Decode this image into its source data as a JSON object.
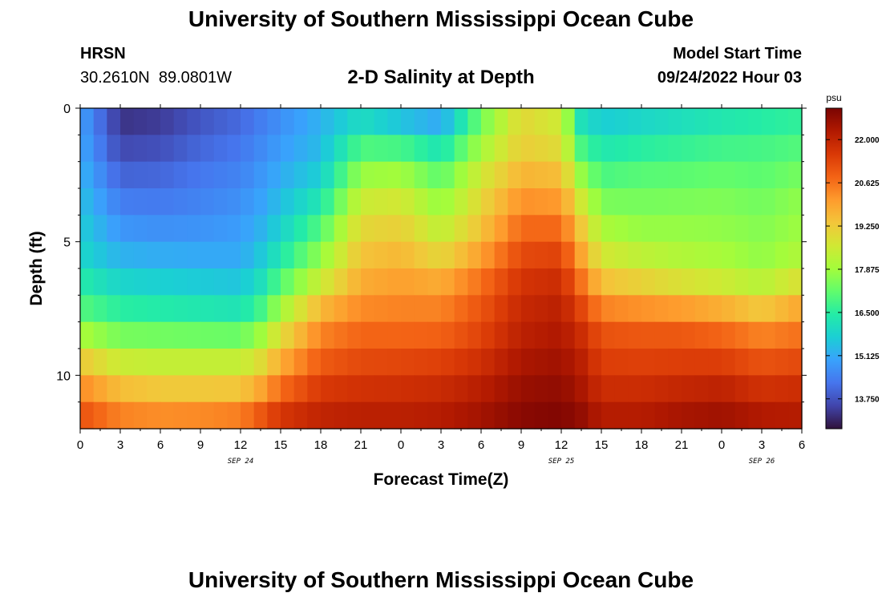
{
  "header": {
    "title": "University of Southern Mississippi Ocean Cube",
    "station": "HRSN",
    "coordinates": "30.2610N  89.0801W",
    "subtitle": "2-D Salinity at Depth",
    "model_start_label": "Model Start Time",
    "model_start_value": "09/24/2022 Hour 03"
  },
  "footer": {
    "title": "University of Southern Mississippi Ocean Cube"
  },
  "chart_data": {
    "type": "heatmap",
    "title": "2-D Salinity at Depth",
    "xlabel": "Forecast Time(Z)",
    "ylabel": "Depth (ft)",
    "x_range_hours": [
      0,
      54
    ],
    "y_range_ft": [
      0,
      12
    ],
    "y_inverted": true,
    "x_tick_hours": [
      0,
      3,
      6,
      9,
      12,
      15,
      18,
      21,
      24,
      27,
      30,
      33,
      36,
      39,
      42,
      45,
      48,
      51,
      54
    ],
    "x_tick_labels": [
      "0",
      "3",
      "6",
      "9",
      "12",
      "15",
      "18",
      "21",
      "0",
      "3",
      "6",
      "9",
      "12",
      "15",
      "18",
      "21",
      "0",
      "3",
      "6"
    ],
    "date_labels": [
      {
        "hour": 12,
        "text": "SEP 24"
      },
      {
        "hour": 36,
        "text": "SEP 25"
      },
      {
        "hour": 51,
        "text": "SEP 26"
      }
    ],
    "y_ticks": [
      0,
      5,
      10
    ],
    "y_tick_labels": [
      "0",
      "5",
      "10"
    ],
    "colorbar": {
      "unit": "psu",
      "min": 12.8,
      "max": 23.0,
      "ticks": [
        13.75,
        15.125,
        16.5,
        17.875,
        19.25,
        20.625,
        22.0
      ],
      "tick_labels": [
        "13.750",
        "15.125",
        "16.500",
        "17.875",
        "19.250",
        "20.625",
        "22.000"
      ],
      "colors": [
        "#30123b",
        "#4145ab",
        "#4675ed",
        "#39a2fc",
        "#1bcfd4",
        "#24eca6",
        "#61fc6c",
        "#a4fc3b",
        "#d1e834",
        "#f3c63a",
        "#fe9b2d",
        "#f36315",
        "#d93806",
        "#b11901",
        "#7a0402"
      ]
    },
    "depth_levels_ft": [
      0,
      1,
      2,
      3,
      4,
      5,
      6,
      7,
      8,
      9,
      10,
      11,
      12
    ],
    "time_profile_hours": [
      0,
      3,
      6,
      9,
      12,
      13.5,
      15,
      18,
      21,
      24,
      27,
      30,
      33,
      36,
      37.5,
      39,
      42,
      45,
      48,
      51,
      54
    ],
    "salinity_psu": [
      [
        15.0,
        13.2,
        13.3,
        13.7,
        14.0,
        14.3,
        14.6,
        15.2,
        15.6,
        14.8,
        14.6,
        17.2,
        19.0,
        18.5,
        15.8,
        15.4,
        15.6,
        15.8,
        16.0,
        16.2,
        16.4
      ],
      [
        15.0,
        13.4,
        13.5,
        13.9,
        14.2,
        14.5,
        14.8,
        15.3,
        16.5,
        16.3,
        15.6,
        17.5,
        19.0,
        18.6,
        16.5,
        16.0,
        16.2,
        16.4,
        16.6,
        16.7,
        16.8
      ],
      [
        15.2,
        13.8,
        13.9,
        14.2,
        14.4,
        14.7,
        15.0,
        15.5,
        17.4,
        17.4,
        16.8,
        18.4,
        19.4,
        19.2,
        17.3,
        16.6,
        16.8,
        16.9,
        17.0,
        17.0,
        17.2
      ],
      [
        15.4,
        14.2,
        14.2,
        14.4,
        14.6,
        14.9,
        15.3,
        16.0,
        18.2,
        18.4,
        17.4,
        18.8,
        19.9,
        19.8,
        18.2,
        17.2,
        17.3,
        17.3,
        17.4,
        17.2,
        17.6
      ],
      [
        15.6,
        14.6,
        14.5,
        14.6,
        14.8,
        15.1,
        15.6,
        16.6,
        18.8,
        18.9,
        18.0,
        19.2,
        20.5,
        20.4,
        19.0,
        17.7,
        17.5,
        17.6,
        17.6,
        17.5,
        17.8
      ],
      [
        15.8,
        15.0,
        14.9,
        14.9,
        15.0,
        15.4,
        16.0,
        17.4,
        19.2,
        19.4,
        18.6,
        19.6,
        21.0,
        21.1,
        19.6,
        18.3,
        18.0,
        17.9,
        17.8,
        17.6,
        17.9
      ],
      [
        16.0,
        15.5,
        15.4,
        15.3,
        15.2,
        15.8,
        16.6,
        18.0,
        19.6,
        19.8,
        19.4,
        20.4,
        21.5,
        21.6,
        20.2,
        19.0,
        18.6,
        18.3,
        18.1,
        17.8,
        18.3
      ],
      [
        16.8,
        16.2,
        16.1,
        16.0,
        15.9,
        16.4,
        17.4,
        19.0,
        20.0,
        20.2,
        20.2,
        20.9,
        21.8,
        22.0,
        21.0,
        19.9,
        19.6,
        19.3,
        19.0,
        18.6,
        19.4
      ],
      [
        17.2,
        16.8,
        16.7,
        16.6,
        16.5,
        17.2,
        18.4,
        20.2,
        20.6,
        20.6,
        20.6,
        21.2,
        22.0,
        22.2,
        21.6,
        20.9,
        20.8,
        20.8,
        20.5,
        20.0,
        20.4
      ],
      [
        18.8,
        18.0,
        18.0,
        18.0,
        18.0,
        18.5,
        19.4,
        20.6,
        21.0,
        21.0,
        21.1,
        21.5,
        22.2,
        22.4,
        22.0,
        21.3,
        21.2,
        21.2,
        21.1,
        20.8,
        20.9
      ],
      [
        19.8,
        19.0,
        18.8,
        18.8,
        18.8,
        19.3,
        20.2,
        21.3,
        21.5,
        21.6,
        21.7,
        22.0,
        22.5,
        22.6,
        22.2,
        21.6,
        21.6,
        21.7,
        21.8,
        21.4,
        21.6
      ],
      [
        20.8,
        20.0,
        19.8,
        19.8,
        19.9,
        20.5,
        21.2,
        21.8,
        21.9,
        21.9,
        22.0,
        22.3,
        22.7,
        22.8,
        22.5,
        22.0,
        22.0,
        22.2,
        22.3,
        22.0,
        22.0
      ],
      [
        21.4,
        20.8,
        20.7,
        20.8,
        21.0,
        21.5,
        22.0,
        22.2,
        22.3,
        22.3,
        22.4,
        22.6,
        22.9,
        23.0,
        22.8,
        22.4,
        22.4,
        22.6,
        22.7,
        22.5,
        22.4
      ]
    ]
  }
}
